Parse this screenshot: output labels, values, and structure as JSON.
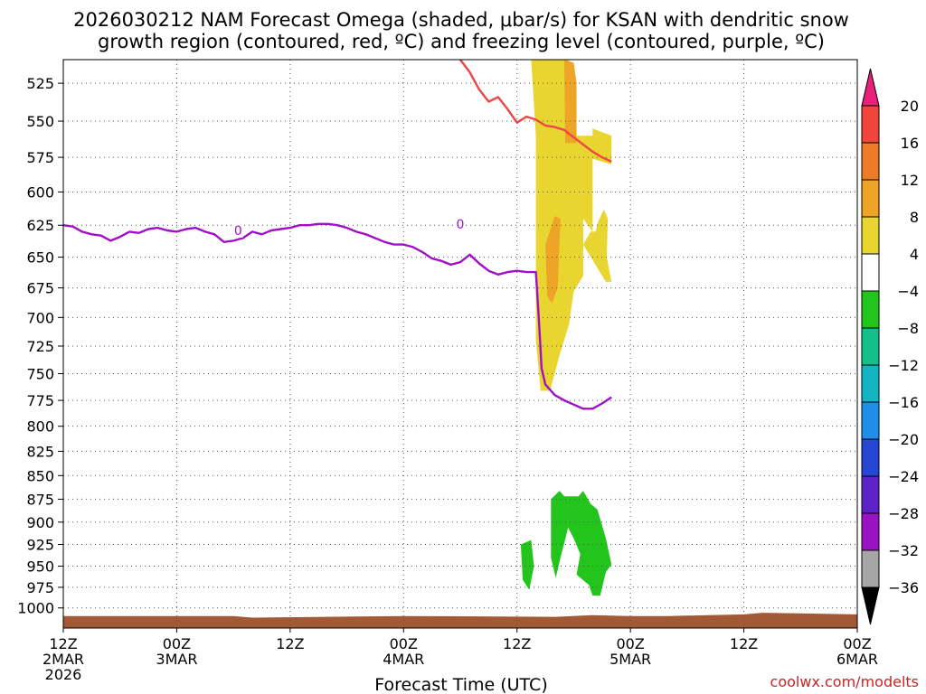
{
  "chart_data": {
    "type": "heatmap",
    "title_line1": "2026030212 NAM Forecast Omega (shaded, μbar/s) for KSAN with dendritic snow",
    "title_line2": "growth region (contoured, red, ºC) and freezing level (contoured, purple, ºC)",
    "xlabel": "Forecast Time (UTC)",
    "credit": "coolwx.com/modelts",
    "x_ticks": [
      {
        "hour": 0,
        "lines": [
          "12Z",
          "2MAR",
          "2026"
        ]
      },
      {
        "hour": 12,
        "lines": [
          "00Z",
          "3MAR"
        ]
      },
      {
        "hour": 24,
        "lines": [
          "12Z"
        ]
      },
      {
        "hour": 36,
        "lines": [
          "00Z",
          "4MAR"
        ]
      },
      {
        "hour": 48,
        "lines": [
          "12Z"
        ]
      },
      {
        "hour": 60,
        "lines": [
          "00Z",
          "5MAR"
        ]
      },
      {
        "hour": 72,
        "lines": [
          "12Z"
        ]
      },
      {
        "hour": 84,
        "lines": [
          "00Z",
          "6MAR"
        ]
      }
    ],
    "x_range_hours": [
      0,
      84
    ],
    "y_ticks": [
      "525",
      "550",
      "575",
      "600",
      "625",
      "650",
      "675",
      "700",
      "725",
      "750",
      "775",
      "800",
      "825",
      "850",
      "875",
      "900",
      "925",
      "950",
      "975",
      "1000"
    ],
    "y_range_hPa": [
      510,
      1025
    ],
    "y_scale": "log-pressure",
    "grid": true,
    "colorbar": {
      "labels": [
        "20",
        "16",
        "12",
        "8",
        "4",
        "−4",
        "−8",
        "−12",
        "−16",
        "−20",
        "−24",
        "−28",
        "−32",
        "−36"
      ],
      "colors": [
        "#e8207a",
        "#f0443c",
        "#ee7b27",
        "#eea426",
        "#e8d52f",
        "#ffffff",
        "#23c51c",
        "#13c08a",
        "#13b4c4",
        "#1f8ee8",
        "#2646d6",
        "#5d22c8",
        "#9b12c4",
        "#a6a6a6",
        "#000000"
      ]
    },
    "series": [
      {
        "contour_label": "0",
        "color": "#a010c8",
        "points": [
          [
            0,
            625
          ],
          [
            1,
            626
          ],
          [
            2,
            630
          ],
          [
            3,
            632
          ],
          [
            4,
            633
          ],
          [
            5,
            637
          ],
          [
            6,
            634
          ],
          [
            7,
            630
          ],
          [
            8,
            631
          ],
          [
            9,
            628
          ],
          [
            10,
            627
          ],
          [
            11,
            629
          ],
          [
            12,
            630
          ],
          [
            13,
            628
          ],
          [
            14,
            627
          ],
          [
            15,
            630
          ],
          [
            16,
            632
          ],
          [
            17,
            638
          ],
          [
            18,
            637
          ],
          [
            19,
            635
          ],
          [
            20,
            630
          ],
          [
            21,
            632
          ],
          [
            22,
            629
          ],
          [
            23,
            628
          ],
          [
            24,
            627
          ],
          [
            25,
            625
          ],
          [
            26,
            625
          ],
          [
            27,
            624
          ],
          [
            28,
            624
          ],
          [
            29,
            625
          ],
          [
            30,
            627
          ],
          [
            31,
            630
          ],
          [
            32,
            632
          ],
          [
            33,
            635
          ],
          [
            34,
            638
          ],
          [
            35,
            640
          ],
          [
            36,
            640
          ],
          [
            37,
            642
          ],
          [
            38,
            646
          ],
          [
            39,
            651
          ],
          [
            40,
            653
          ],
          [
            41,
            656
          ],
          [
            42,
            654
          ],
          [
            43,
            648
          ],
          [
            44,
            655
          ],
          [
            45,
            661
          ],
          [
            46,
            664
          ],
          [
            47,
            662
          ],
          [
            48,
            661
          ],
          [
            49,
            662
          ],
          [
            50,
            662
          ],
          [
            50.3,
            700
          ],
          [
            50.6,
            745
          ],
          [
            51,
            760
          ],
          [
            52,
            770
          ],
          [
            53,
            775
          ],
          [
            54,
            779
          ],
          [
            55,
            783
          ],
          [
            56,
            783
          ],
          [
            57,
            778
          ],
          [
            58,
            772
          ]
        ]
      },
      {
        "contour_label": "",
        "color": "#ee4646",
        "points": [
          [
            42,
            510
          ],
          [
            43,
            518
          ],
          [
            44,
            529
          ],
          [
            45,
            537
          ],
          [
            46,
            534
          ],
          [
            47,
            542
          ],
          [
            48,
            551
          ],
          [
            49,
            547
          ],
          [
            50,
            549
          ],
          [
            51,
            553
          ],
          [
            52,
            554
          ],
          [
            53,
            556
          ],
          [
            54,
            561
          ],
          [
            55,
            566
          ],
          [
            56,
            571
          ],
          [
            57,
            575
          ],
          [
            58,
            578
          ]
        ]
      }
    ],
    "shaded_regions": [
      {
        "value_range": [
          4,
          8
        ],
        "polygon": [
          [
            49.5,
            510
          ],
          [
            53.5,
            510
          ],
          [
            54,
            560
          ],
          [
            56,
            560
          ],
          [
            56,
            555
          ],
          [
            58,
            560
          ],
          [
            58,
            580
          ],
          [
            56,
            576
          ],
          [
            56,
            630
          ],
          [
            55,
            620
          ],
          [
            55,
            665
          ],
          [
            54,
            678
          ],
          [
            53.5,
            706
          ],
          [
            52.5,
            733
          ],
          [
            51.5,
            766
          ],
          [
            50.5,
            766
          ],
          [
            50,
            720
          ],
          [
            50,
            560
          ]
        ]
      },
      {
        "value_range": [
          4,
          8
        ],
        "polygon": [
          [
            55,
            640
          ],
          [
            55.8,
            630
          ],
          [
            56.3,
            630
          ],
          [
            56.6,
            622
          ],
          [
            57.2,
            613
          ],
          [
            57.6,
            620
          ],
          [
            57.5,
            650
          ],
          [
            58,
            670
          ],
          [
            57.4,
            670
          ]
        ]
      },
      {
        "value_range": [
          8,
          12
        ],
        "polygon": [
          [
            53,
            510
          ],
          [
            54,
            512
          ],
          [
            54.3,
            525
          ],
          [
            54.3,
            565
          ],
          [
            53.1,
            565
          ]
        ]
      },
      {
        "value_range": [
          8,
          12
        ],
        "polygon": [
          [
            51,
            640
          ],
          [
            52,
            618
          ],
          [
            52.6,
            620
          ],
          [
            52.3,
            675
          ],
          [
            51.7,
            688
          ],
          [
            51.2,
            682
          ]
        ]
      },
      {
        "value_range": [
          -8,
          -4
        ],
        "polygon": [
          [
            48.4,
            925
          ],
          [
            49.5,
            920
          ],
          [
            49.8,
            950
          ],
          [
            49.3,
            978
          ],
          [
            48.6,
            966
          ]
        ]
      },
      {
        "value_range": [
          -8,
          -4
        ],
        "polygon": [
          [
            51.6,
            875
          ],
          [
            52.5,
            866
          ],
          [
            53,
            872
          ],
          [
            54.5,
            872
          ],
          [
            55,
            866
          ],
          [
            55.8,
            880
          ],
          [
            56.5,
            886
          ],
          [
            57.4,
            918
          ],
          [
            58,
            948
          ],
          [
            57.4,
            957
          ],
          [
            56.8,
            985
          ],
          [
            56,
            985
          ],
          [
            55.6,
            972
          ],
          [
            54.3,
            960
          ],
          [
            54.7,
            936
          ],
          [
            54,
            918
          ],
          [
            53.4,
            906
          ],
          [
            53.2,
            915
          ],
          [
            52.6,
            940
          ],
          [
            52.1,
            964
          ],
          [
            51.6,
            940
          ],
          [
            51.6,
            905
          ]
        ]
      }
    ],
    "terrain_color": "#a25a36"
  }
}
